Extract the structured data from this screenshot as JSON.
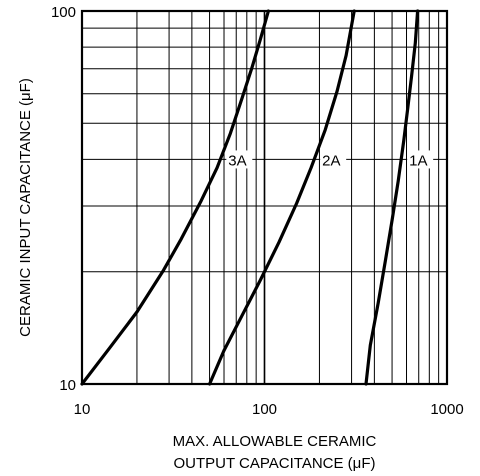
{
  "chart_data": {
    "type": "line",
    "xlabel_line1": "MAX. ALLOWABLE CERAMIC",
    "xlabel_line2": "OUTPUT CAPACITANCE (μF)",
    "ylabel": "CERAMIC INPUT CAPACITANCE (μF)",
    "x_scale": "log",
    "y_scale": "log",
    "xlim": [
      10,
      1000
    ],
    "ylim": [
      10,
      100
    ],
    "grid": true,
    "x_ticks": [
      {
        "value": 10,
        "label": "10"
      },
      {
        "value": 100,
        "label": "100"
      },
      {
        "value": 1000,
        "label": "1000"
      }
    ],
    "y_ticks": [
      {
        "value": 10,
        "label": "10"
      },
      {
        "value": 100,
        "label": "100"
      }
    ],
    "series": [
      {
        "name": "3A",
        "x": [
          10,
          14,
          20,
          28,
          35,
          45,
          55,
          65,
          75,
          85,
          95,
          105
        ],
        "y": [
          10,
          12.4,
          15.6,
          20.2,
          24.5,
          31,
          38,
          47,
          58,
          70,
          84,
          100
        ]
      },
      {
        "name": "2A",
        "x": [
          50,
          60,
          75,
          95,
          120,
          150,
          180,
          215,
          250,
          280,
          310
        ],
        "y": [
          10,
          12.3,
          15.2,
          19,
          24,
          30.5,
          38,
          48,
          61,
          76,
          100
        ]
      },
      {
        "name": "1A",
        "x": [
          360,
          380,
          420,
          460,
          500,
          540,
          580,
          610,
          640,
          670,
          690
        ],
        "y": [
          10,
          12.7,
          16.5,
          21.5,
          27.5,
          35,
          45,
          55,
          67,
          82,
          100
        ]
      }
    ]
  }
}
